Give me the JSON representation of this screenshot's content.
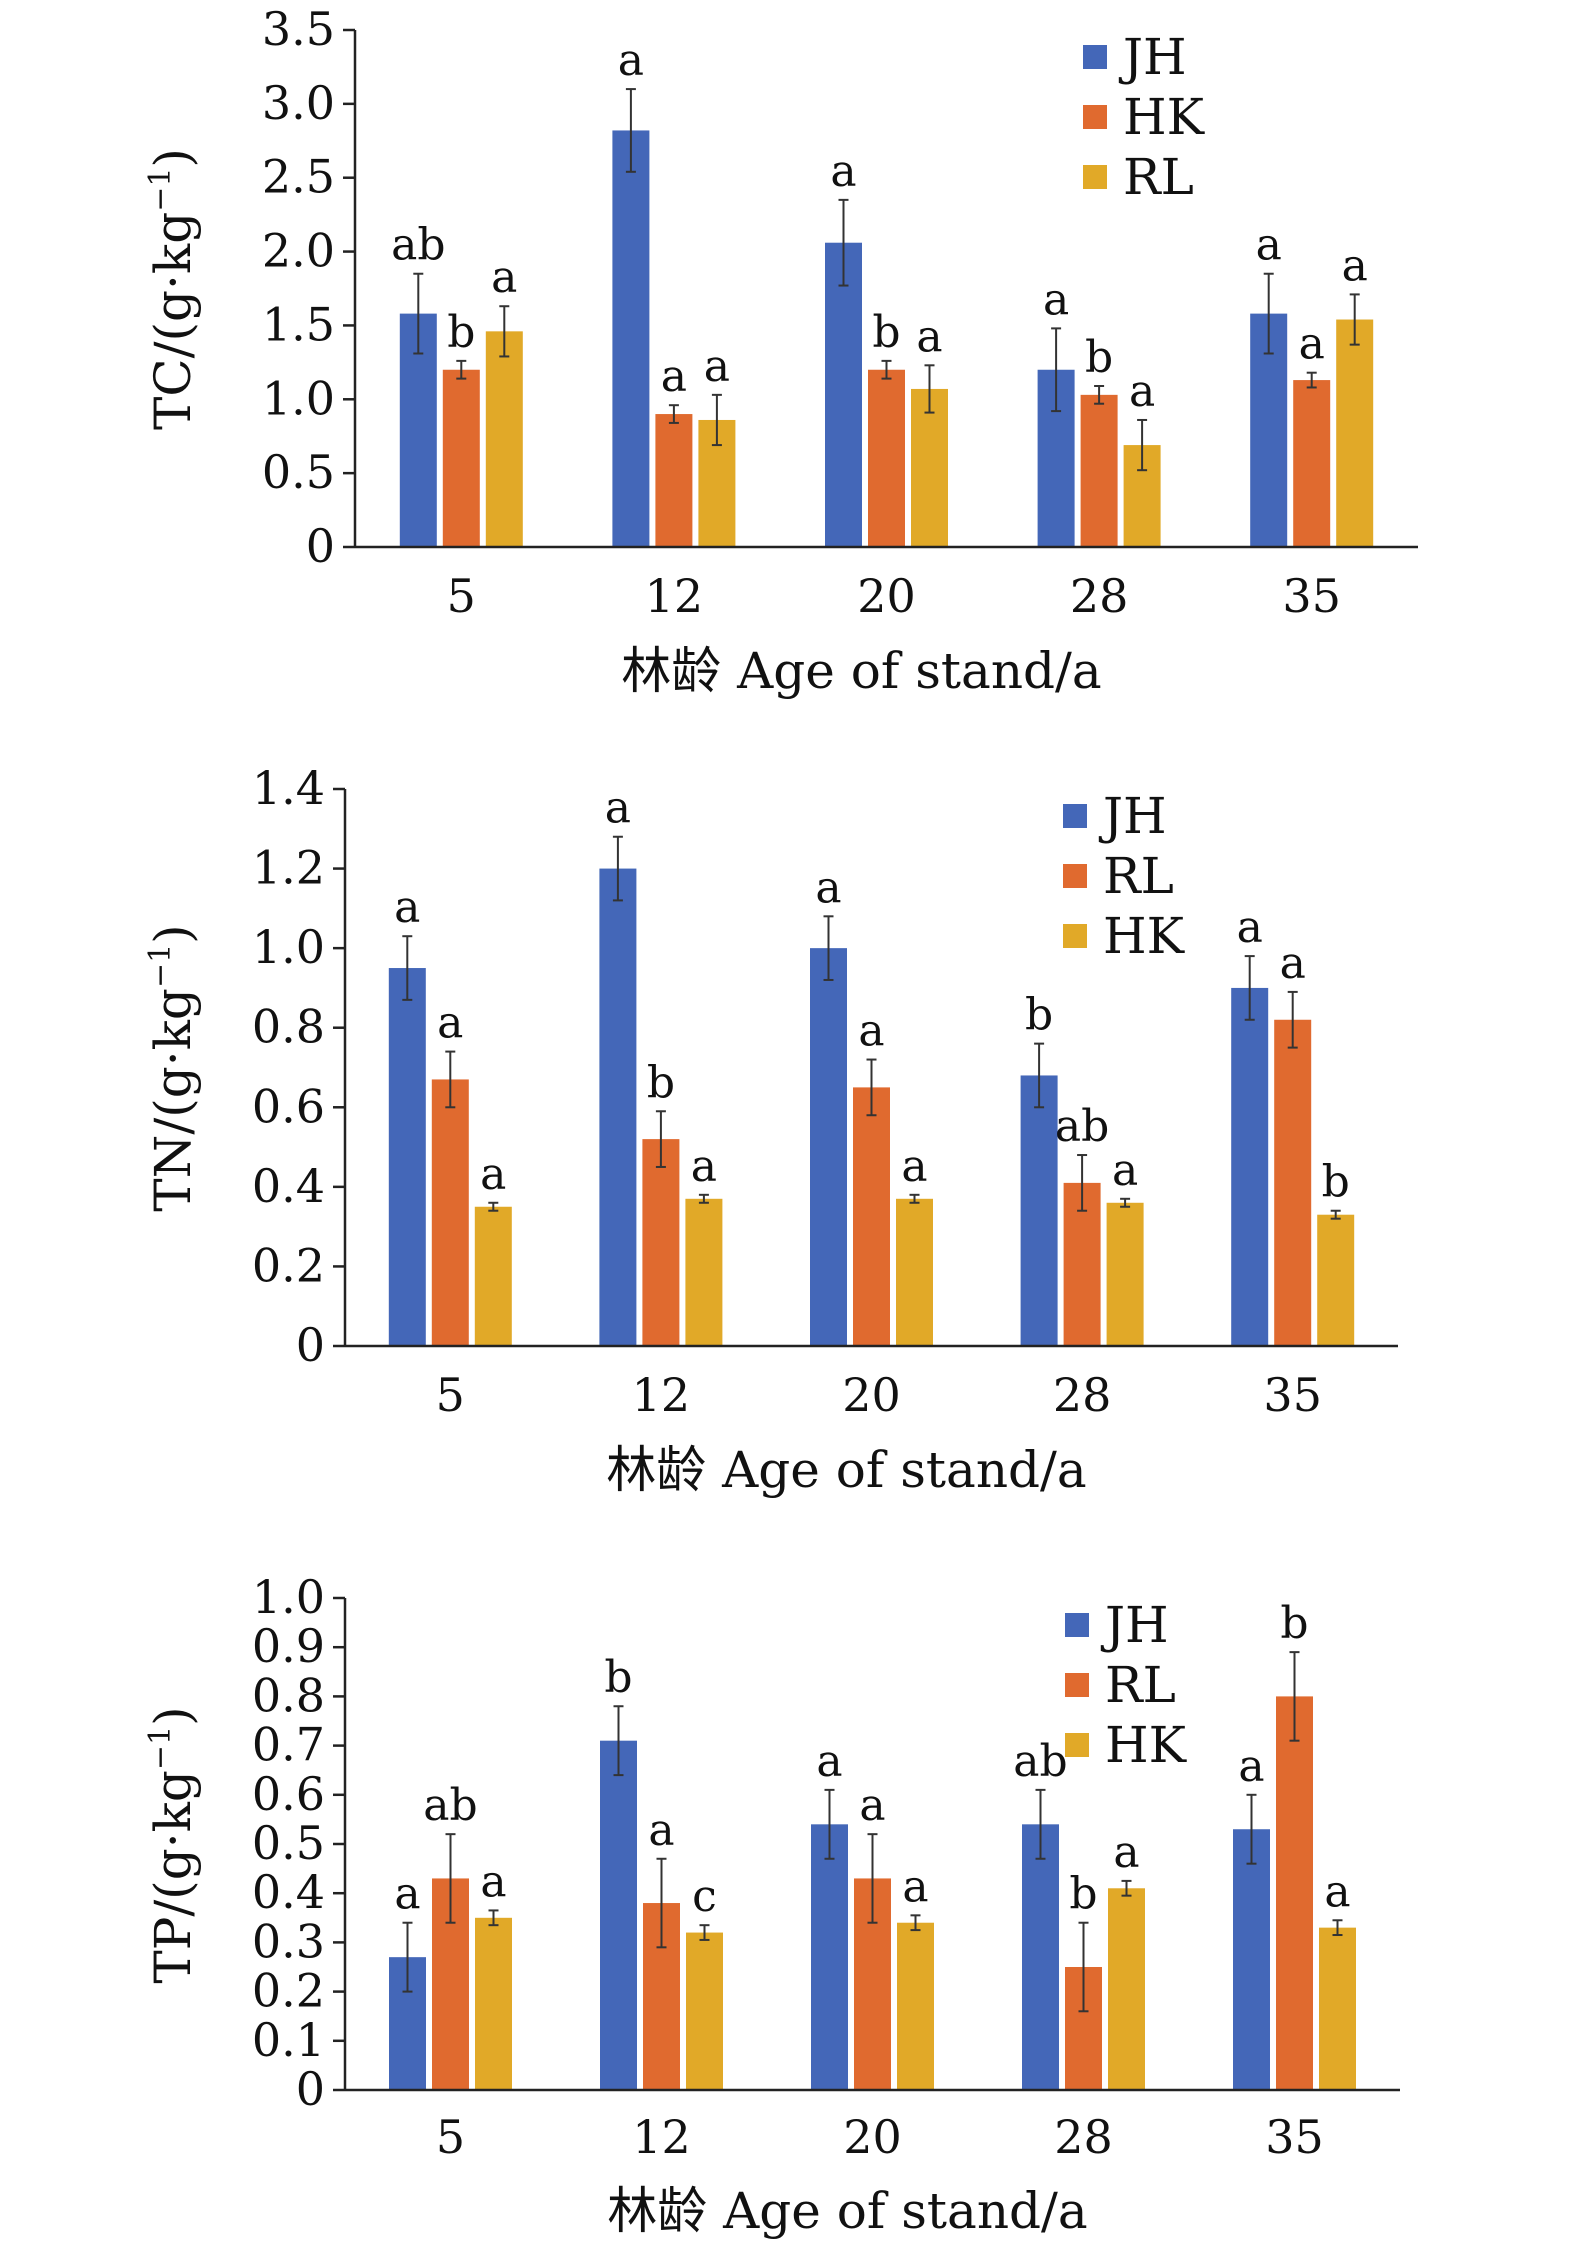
{
  "chart_data": [
    {
      "type": "bar",
      "panel": "TC",
      "ylabel_main": "TC/(g·kg",
      "ylabel_sup": "−1",
      "ylabel_close": ")",
      "xlabel": "林龄 Age of stand/a",
      "categories": [
        "5",
        "12",
        "20",
        "28",
        "35"
      ],
      "ylim": [
        0,
        3.5
      ],
      "yticks": [
        "0",
        "0.5",
        "1.0",
        "1.5",
        "2.0",
        "2.5",
        "3.0",
        "3.5"
      ],
      "legend_position": "top-right",
      "series": [
        {
          "name": "JH",
          "color": "#4467b8",
          "values": [
            1.58,
            2.82,
            2.06,
            1.2,
            1.58
          ],
          "errors": [
            0.27,
            0.28,
            0.29,
            0.28,
            0.27
          ],
          "letters": [
            "ab",
            "a",
            "a",
            "a",
            "a"
          ]
        },
        {
          "name": "HK",
          "color": "#e06a2f",
          "values": [
            1.2,
            0.9,
            1.2,
            1.03,
            1.13
          ],
          "errors": [
            0.06,
            0.06,
            0.06,
            0.06,
            0.05
          ],
          "letters": [
            "b",
            "a",
            "b",
            "b",
            "a"
          ]
        },
        {
          "name": "RL",
          "color": "#e1a928",
          "values": [
            1.46,
            0.86,
            1.07,
            0.69,
            1.54
          ],
          "errors": [
            0.17,
            0.17,
            0.16,
            0.17,
            0.17
          ],
          "letters": [
            "a",
            "a",
            "a",
            "a",
            "a"
          ]
        }
      ]
    },
    {
      "type": "bar",
      "panel": "TN",
      "ylabel_main": "TN/(g·kg",
      "ylabel_sup": "−1",
      "ylabel_close": ")",
      "xlabel": "林龄 Age of stand/a",
      "categories": [
        "5",
        "12",
        "20",
        "28",
        "35"
      ],
      "ylim": [
        0,
        1.4
      ],
      "yticks": [
        "0",
        "0.2",
        "0.4",
        "0.6",
        "0.8",
        "1.0",
        "1.2",
        "1.4"
      ],
      "legend_position": "top-right",
      "series": [
        {
          "name": "JH",
          "color": "#4467b8",
          "values": [
            0.95,
            1.2,
            1.0,
            0.68,
            0.9
          ],
          "errors": [
            0.08,
            0.08,
            0.08,
            0.08,
            0.08
          ],
          "letters": [
            "a",
            "a",
            "a",
            "b",
            "a"
          ]
        },
        {
          "name": "RL",
          "color": "#e06a2f",
          "values": [
            0.67,
            0.52,
            0.65,
            0.41,
            0.82
          ],
          "errors": [
            0.07,
            0.07,
            0.07,
            0.07,
            0.07
          ],
          "letters": [
            "a",
            "b",
            "a",
            "ab",
            "a"
          ]
        },
        {
          "name": "HK",
          "color": "#e1a928",
          "values": [
            0.35,
            0.37,
            0.37,
            0.36,
            0.33
          ],
          "errors": [
            0.01,
            0.01,
            0.01,
            0.01,
            0.01
          ],
          "letters": [
            "a",
            "a",
            "a",
            "a",
            "b"
          ]
        }
      ]
    },
    {
      "type": "bar",
      "panel": "TP",
      "ylabel_main": "TP/(g·kg",
      "ylabel_sup": "−1",
      "ylabel_close": ")",
      "xlabel": "林龄 Age of stand/a",
      "categories": [
        "5",
        "12",
        "20",
        "28",
        "35"
      ],
      "ylim": [
        0,
        1.0
      ],
      "yticks": [
        "0",
        "0.1",
        "0.2",
        "0.3",
        "0.4",
        "0.5",
        "0.6",
        "0.7",
        "0.8",
        "0.9",
        "1.0"
      ],
      "legend_position": "top-right",
      "series": [
        {
          "name": "JH",
          "color": "#4467b8",
          "values": [
            0.27,
            0.71,
            0.54,
            0.54,
            0.53
          ],
          "errors": [
            0.07,
            0.07,
            0.07,
            0.07,
            0.07
          ],
          "letters": [
            "a",
            "b",
            "a",
            "ab",
            "a"
          ]
        },
        {
          "name": "RL",
          "color": "#e06a2f",
          "values": [
            0.43,
            0.38,
            0.43,
            0.25,
            0.8
          ],
          "errors": [
            0.09,
            0.09,
            0.09,
            0.09,
            0.09
          ],
          "letters": [
            "ab",
            "a",
            "a",
            "b",
            "b"
          ]
        },
        {
          "name": "HK",
          "color": "#e1a928",
          "values": [
            0.35,
            0.32,
            0.34,
            0.41,
            0.33
          ],
          "errors": [
            0.015,
            0.015,
            0.015,
            0.015,
            0.015
          ],
          "letters": [
            "a",
            "c",
            "a",
            "a",
            "a"
          ]
        }
      ]
    }
  ]
}
